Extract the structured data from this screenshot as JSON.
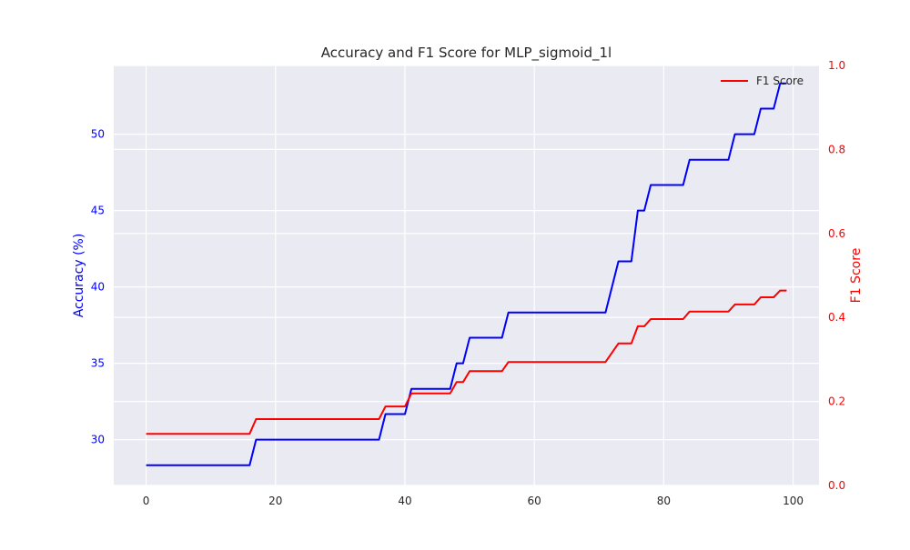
{
  "chart_data": {
    "type": "line",
    "title": "Accuracy and F1 Score for MLP_sigmoid_1l",
    "xlabel": "",
    "ylabel_left": "Accuracy (%)",
    "ylabel_right": "F1 Score",
    "xlim": [
      -5,
      104
    ],
    "ylim_left": [
      27.0,
      54.5
    ],
    "ylim_right": [
      0.0,
      1.0
    ],
    "x_ticks": [
      0,
      20,
      40,
      60,
      80,
      100
    ],
    "x_tick_labels": [
      "0",
      "20",
      "40",
      "60",
      "80",
      "100"
    ],
    "y_left_ticks": [
      30,
      35,
      40,
      45,
      50
    ],
    "y_left_tick_labels": [
      "30",
      "35",
      "40",
      "45",
      "50"
    ],
    "y_right_ticks": [
      0.0,
      0.2,
      0.4,
      0.6,
      0.8,
      1.0
    ],
    "y_right_tick_labels": [
      "0.0",
      "0.2",
      "0.4",
      "0.6",
      "0.8",
      "1.0"
    ],
    "grid": true,
    "legend": {
      "placement": "top-right",
      "entries": [
        "F1 Score"
      ]
    },
    "colors": {
      "accuracy": "#0000ff",
      "f1": "#ff0000",
      "plot_bg": "#eaeaf2",
      "grid": "#ffffff",
      "text": "#262626"
    },
    "series": [
      {
        "key": "accuracy",
        "axis": "left",
        "color": "#0000ff",
        "points": [
          [
            0,
            28.33
          ],
          [
            16,
            28.33
          ],
          [
            17,
            30.0
          ],
          [
            36,
            30.0
          ],
          [
            37,
            31.67
          ],
          [
            40,
            31.67
          ],
          [
            41,
            33.33
          ],
          [
            47,
            33.33
          ],
          [
            48,
            35.0
          ],
          [
            49,
            35.0
          ],
          [
            50,
            36.67
          ],
          [
            55,
            36.67
          ],
          [
            56,
            38.33
          ],
          [
            71,
            38.33
          ],
          [
            73,
            41.67
          ],
          [
            75,
            41.67
          ],
          [
            76,
            45.0
          ],
          [
            77,
            45.0
          ],
          [
            78,
            46.67
          ],
          [
            83,
            46.67
          ],
          [
            84,
            48.33
          ],
          [
            90,
            48.33
          ],
          [
            91,
            50.0
          ],
          [
            94,
            50.0
          ],
          [
            95,
            51.67
          ],
          [
            97,
            51.67
          ],
          [
            98,
            53.33
          ],
          [
            99,
            53.33
          ]
        ]
      },
      {
        "key": "f1",
        "name": "F1 Score",
        "axis": "right",
        "color": "#ff0000",
        "points": [
          [
            0,
            0.123
          ],
          [
            16,
            0.123
          ],
          [
            17,
            0.158
          ],
          [
            36,
            0.158
          ],
          [
            37,
            0.188
          ],
          [
            40,
            0.188
          ],
          [
            41,
            0.219
          ],
          [
            47,
            0.219
          ],
          [
            48,
            0.246
          ],
          [
            49,
            0.246
          ],
          [
            50,
            0.272
          ],
          [
            55,
            0.272
          ],
          [
            56,
            0.294
          ],
          [
            71,
            0.294
          ],
          [
            73,
            0.338
          ],
          [
            75,
            0.338
          ],
          [
            76,
            0.379
          ],
          [
            77,
            0.379
          ],
          [
            78,
            0.396
          ],
          [
            83,
            0.396
          ],
          [
            84,
            0.414
          ],
          [
            90,
            0.414
          ],
          [
            91,
            0.431
          ],
          [
            94,
            0.431
          ],
          [
            95,
            0.448
          ],
          [
            97,
            0.448
          ],
          [
            98,
            0.464
          ],
          [
            99,
            0.464
          ]
        ]
      }
    ]
  }
}
